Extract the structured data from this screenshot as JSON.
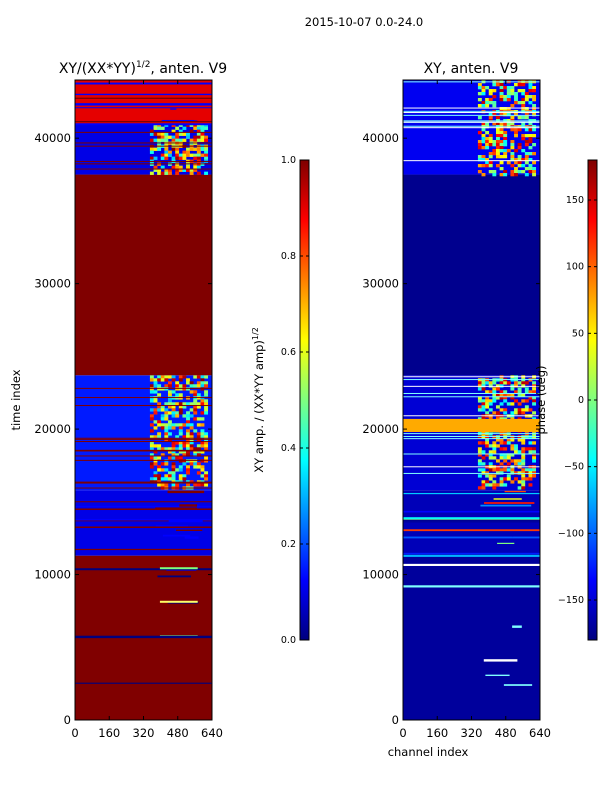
{
  "figure_title": "2015-10-07 0.0-24.0",
  "chart_data": [
    {
      "type": "heatmap",
      "title": "XY/(XX*YY)",
      "title_exponent": "1/2",
      "title_suffix": ", anten. V9",
      "xlabel": "",
      "ylabel": "time index",
      "xlim": [
        0,
        640
      ],
      "ylim": [
        0,
        44000
      ],
      "x_ticks": [
        0,
        160,
        320,
        480,
        640
      ],
      "y_ticks": [
        0,
        10000,
        20000,
        30000,
        40000
      ],
      "colorbar": {
        "label": "XY amp. / (XX*YY amp)",
        "label_exponent": "1/2",
        "range": [
          0.0,
          1.0
        ],
        "ticks": [
          0.0,
          0.2,
          0.4,
          0.6,
          0.8,
          1.0
        ],
        "tick_labels": [
          "0.0",
          "0.2",
          "0.4",
          "0.6",
          "0.8",
          "1.0"
        ],
        "colormap": "jet"
      },
      "blocks": [
        {
          "t0": 0,
          "t1": 11300,
          "value": 1.0,
          "kind": "saturated_with_gaps"
        },
        {
          "t0": 11300,
          "t1": 15800,
          "value": 0.1,
          "kind": "striped"
        },
        {
          "t0": 15800,
          "t1": 23700,
          "value": 0.15,
          "kind": "band_activity"
        },
        {
          "t0": 23700,
          "t1": 37500,
          "value": 1.0,
          "kind": "saturated"
        },
        {
          "t0": 37500,
          "t1": 41000,
          "value": 0.1,
          "kind": "band_activity"
        },
        {
          "t0": 41000,
          "t1": 44000,
          "value": 0.9,
          "kind": "striped"
        }
      ]
    },
    {
      "type": "heatmap",
      "title": "XY, anten. V9",
      "xlabel": "channel index",
      "ylabel": "",
      "xlim": [
        0,
        640
      ],
      "ylim": [
        0,
        44000
      ],
      "x_ticks": [
        0,
        160,
        320,
        480,
        640
      ],
      "y_ticks": [
        0,
        10000,
        20000,
        30000,
        40000
      ],
      "colorbar": {
        "label": "phase (deg)",
        "range": [
          -180,
          180
        ],
        "ticks": [
          -150,
          -100,
          -50,
          0,
          50,
          100,
          150
        ],
        "tick_labels": [
          "−150",
          "−100",
          "−50",
          "0",
          "50",
          "100",
          "150"
        ],
        "colormap": "jet"
      },
      "blocks": [
        {
          "t0": 0,
          "t1": 11300,
          "value": -170,
          "kind": "sparse_lines"
        },
        {
          "t0": 11300,
          "t1": 15800,
          "value": -160,
          "kind": "striped"
        },
        {
          "t0": 15800,
          "t1": 23700,
          "value": -150,
          "kind": "band_activity"
        },
        {
          "t0": 23700,
          "t1": 37500,
          "value": -175,
          "kind": "uniform"
        },
        {
          "t0": 37500,
          "t1": 44000,
          "value": -140,
          "kind": "band_activity"
        }
      ]
    }
  ]
}
